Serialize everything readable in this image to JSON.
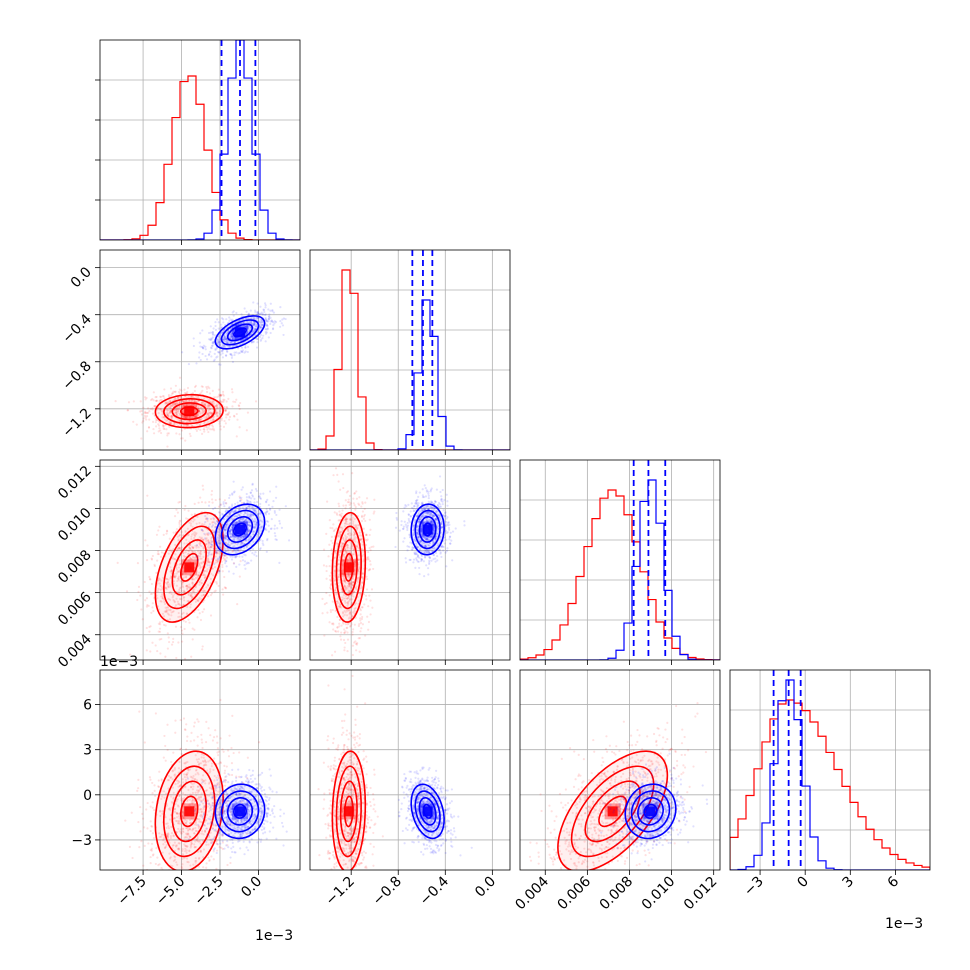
{
  "chart_data": {
    "type": "corner",
    "colors": {
      "red": "#ff0000",
      "blue": "#0000ff"
    },
    "series": [
      {
        "name": "",
        "color": "#ff0000",
        "means": [
          -0.0045,
          -0.00122,
          0.0072,
          -0.0011
        ],
        "stds": [
          0.0011,
          7e-05,
          0.0013,
          0.002
        ]
      },
      {
        "name": "",
        "color": "#0000ff",
        "means": [
          -0.0012,
          -0.00055,
          0.009,
          -0.0011
        ],
        "stds": [
          0.0008,
          7e-05,
          0.0006,
          0.0009
        ]
      }
    ],
    "quantiles_blue": [
      [
        -0.0024,
        -0.0012,
        -0.0002
      ],
      [
        -0.00068,
        -0.00059,
        -0.00051
      ],
      [
        0.0082,
        0.0089,
        0.0097
      ],
      [
        -0.0021,
        -0.0011,
        -0.0003
      ]
    ],
    "axes": [
      {
        "range": [
          -0.0103,
          0.0027
        ],
        "ticks": [
          -0.0075,
          -0.005,
          -0.0025,
          0.0
        ],
        "tick_labels": [
          "−7.5",
          "−5.0",
          "−2.5",
          "0.0"
        ],
        "offset_label": "1e−3"
      },
      {
        "range": [
          -0.00155,
          0.00015
        ],
        "ticks": [
          -0.0012,
          -0.0008,
          -0.0004,
          0.0
        ],
        "tick_labels": [
          "−1.2",
          "−0.8",
          "−0.4",
          "0.0"
        ],
        "offset_label": ""
      },
      {
        "range": [
          0.0028,
          0.0123
        ],
        "ticks": [
          0.004,
          0.006,
          0.008,
          0.01,
          0.012
        ],
        "tick_labels": [
          "0.004",
          "0.006",
          "0.008",
          "0.010",
          "0.012"
        ],
        "offset_label": ""
      },
      {
        "range": [
          -0.005,
          0.0083
        ],
        "ticks": [
          -0.003,
          0.0,
          0.003,
          0.006
        ],
        "tick_labels": [
          "−3",
          "0",
          "3",
          "6"
        ],
        "offset_label": "1e−3"
      }
    ],
    "hist_peaks": [
      {
        "red": {
          "center": -0.0045,
          "norm_height": 0.82
        },
        "blue": {
          "center": -0.0012,
          "norm_height": 1.0
        }
      },
      {
        "red": {
          "center": -0.00122,
          "norm_height": 0.9
        },
        "blue": {
          "center": -0.00055,
          "norm_height": 0.75
        }
      },
      {
        "red": {
          "center": 0.0072,
          "norm_height": 0.85
        },
        "blue": {
          "center": 0.009,
          "norm_height": 0.9
        }
      },
      {
        "red": {
          "center": -0.0011,
          "norm_height": 0.85
        },
        "blue": {
          "center": -0.0011,
          "norm_height": 0.95
        }
      }
    ],
    "grid": true
  }
}
